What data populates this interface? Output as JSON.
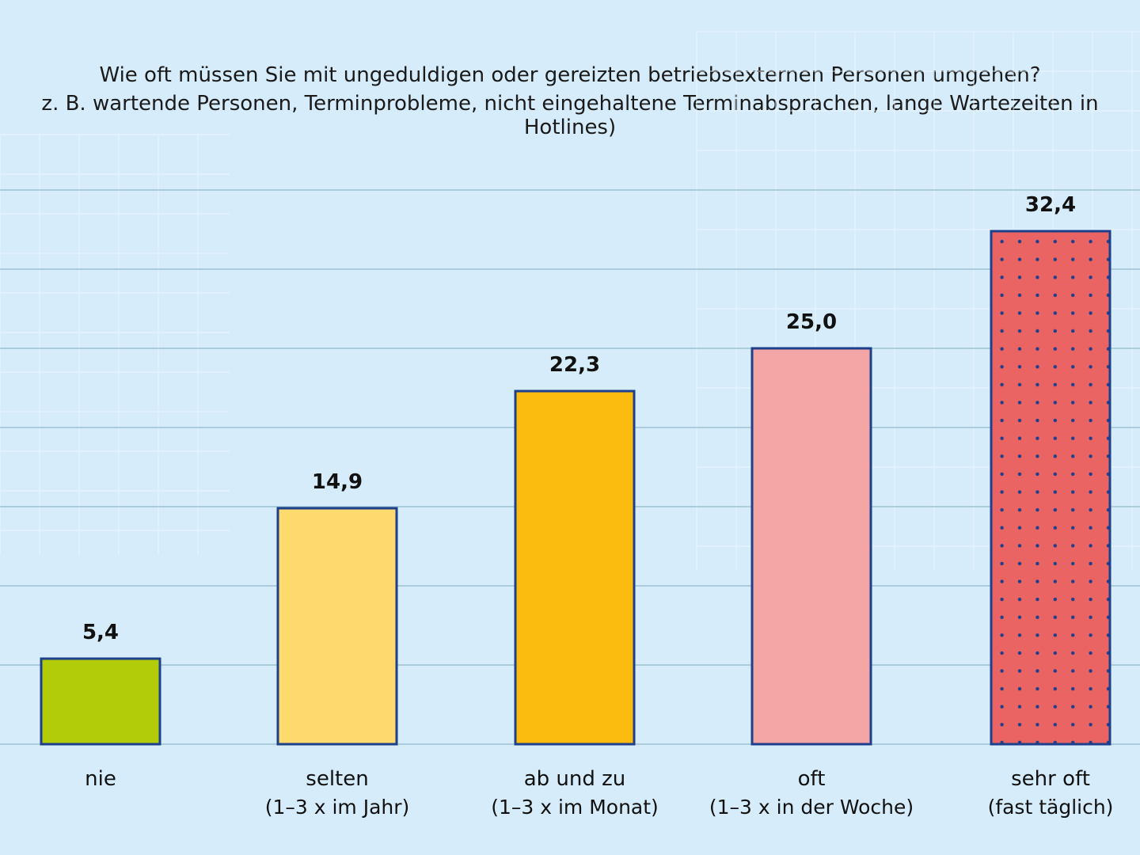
{
  "chart_data": {
    "type": "bar",
    "title": "Wie oft müssen Sie mit ungeduldigen oder gereizten betriebsexternen Personen umgehen?",
    "subtitle": "z. B. wartende Personen, Terminprobleme, nicht eingehaltene Terminabsprachen, lange Wartezeiten in Hotlines)",
    "xlabel": "",
    "ylabel": "",
    "ylim": [
      0,
      35
    ],
    "grid": true,
    "categories": [
      {
        "label": "nie",
        "sublabel": ""
      },
      {
        "label": "selten",
        "sublabel": "(1–3 x im Jahr)"
      },
      {
        "label": "ab und zu",
        "sublabel": "(1–3 x im Monat)"
      },
      {
        "label": "oft",
        "sublabel": "(1–3 x in der Woche)"
      },
      {
        "label": "sehr oft",
        "sublabel": "(fast täglich)"
      }
    ],
    "values": [
      5.4,
      14.9,
      22.3,
      25.0,
      32.4
    ],
    "value_labels": [
      "5,4",
      "14,9",
      "22,3",
      "25,0",
      "32,4"
    ],
    "colors": [
      "#b2cc0a",
      "#fdd96e",
      "#fbbb0f",
      "#f4a6a6",
      "#ea6464"
    ],
    "outline_color": "#1d3f8c",
    "dotted_bar_index": 4
  }
}
